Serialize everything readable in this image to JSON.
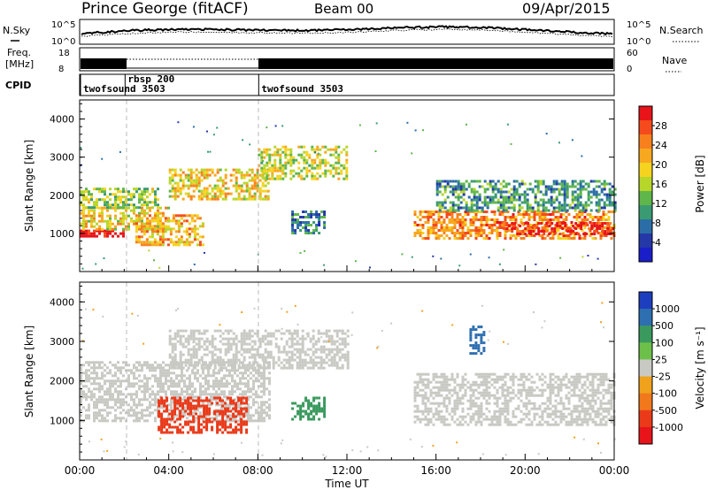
{
  "header": {
    "station": "Prince George (fitACF)",
    "beam": "Beam 00",
    "date": "09/Apr/2015"
  },
  "params": {
    "nsky_label": "N.Sky",
    "nsearch_label": "N.Search",
    "freq_label": "Freq.",
    "freq_unit": "[MHz]",
    "nave_label": "Nave",
    "cpid_label": "CPID",
    "noise_ticks": [
      "10^5",
      "10^0"
    ],
    "freq_ticks": [
      "18",
      "8"
    ],
    "nave_ticks": [
      "60",
      "0"
    ],
    "cpid_entries": [
      {
        "name": "twofsound 3503",
        "start_hour": 0.0
      },
      {
        "name": "rbsp 200",
        "start_hour": 2.0
      },
      {
        "name": "twofsound 3503",
        "start_hour": 8.0
      }
    ]
  },
  "chart_data": [
    {
      "type": "heatmap",
      "quantity": "Power",
      "xlabel": "",
      "ylabel": "Slant Range [km]",
      "xlim": [
        0,
        24
      ],
      "ylim": [
        0,
        4500
      ],
      "yticks": [
        "1000",
        "2000",
        "3000",
        "4000"
      ],
      "colorbar": {
        "label": "Power [dB]",
        "ticks": [
          "28",
          "24",
          "20",
          "16",
          "12",
          "8",
          "4"
        ],
        "colors": [
          "#e8141a",
          "#f54a1c",
          "#f7801c",
          "#f7a81f",
          "#f5d31f",
          "#b7d62a",
          "#5fb64a",
          "#3a9b72",
          "#2b6ea7",
          "#2438a8",
          "#1a1ec8"
        ]
      },
      "regions": [
        {
          "hours": [
            0.0,
            2.0
          ],
          "range_km": [
            900,
            1100
          ],
          "value_db": 28
        },
        {
          "hours": [
            0.0,
            4.0
          ],
          "range_km": [
            1100,
            1700
          ],
          "value_db": 18
        },
        {
          "hours": [
            0.0,
            3.5
          ],
          "range_km": [
            1700,
            2200
          ],
          "value_db": 14
        },
        {
          "hours": [
            2.5,
            5.5
          ],
          "range_km": [
            700,
            1500
          ],
          "value_db": 20
        },
        {
          "hours": [
            4.0,
            8.5
          ],
          "range_km": [
            1900,
            2700
          ],
          "value_db": 18
        },
        {
          "hours": [
            8.0,
            12.0
          ],
          "range_km": [
            2400,
            3300
          ],
          "value_db": 16
        },
        {
          "hours": [
            9.5,
            11.0
          ],
          "range_km": [
            1000,
            1600
          ],
          "value_db": 8
        },
        {
          "hours": [
            15.0,
            24.0
          ],
          "range_km": [
            900,
            1600
          ],
          "value_db": 22
        },
        {
          "hours": [
            19.0,
            24.0
          ],
          "range_km": [
            1000,
            1300
          ],
          "value_db": 28
        },
        {
          "hours": [
            16.0,
            24.0
          ],
          "range_km": [
            1600,
            2400
          ],
          "value_db": 10
        }
      ]
    },
    {
      "type": "heatmap",
      "quantity": "Velocity",
      "xlabel": "Time UT",
      "ylabel": "Slant Range [km]",
      "xlim": [
        0,
        24
      ],
      "ylim": [
        0,
        4500
      ],
      "xticks": [
        "00:00",
        "04:00",
        "08:00",
        "12:00",
        "16:00",
        "20:00",
        "00:00"
      ],
      "yticks": [
        "1000",
        "2000",
        "3000",
        "4000"
      ],
      "colorbar": {
        "label": "Velocity [m s⁻¹]",
        "ticks": [
          "1000",
          "500",
          "100",
          "25",
          "-25",
          "-100",
          "-500",
          "-1000"
        ],
        "colors": [
          "#1d3fbf",
          "#2d6fb0",
          "#3a9a5e",
          "#6cc04a",
          "#c9c9c4",
          "#f0a21c",
          "#f2781c",
          "#ea3a1a",
          "#e8141a"
        ]
      },
      "regions": [
        {
          "hours": [
            0.0,
            8.5
          ],
          "range_km": [
            1000,
            2500
          ],
          "value_ms": 0
        },
        {
          "hours": [
            4.0,
            12.0
          ],
          "range_km": [
            2300,
            3300
          ],
          "value_ms": 0
        },
        {
          "hours": [
            3.5,
            7.5
          ],
          "range_km": [
            700,
            1600
          ],
          "value_ms": -500
        },
        {
          "hours": [
            9.5,
            11.0
          ],
          "range_km": [
            1000,
            1600
          ],
          "value_ms": 500
        },
        {
          "hours": [
            15.0,
            24.0
          ],
          "range_km": [
            900,
            2200
          ],
          "value_ms": 0
        },
        {
          "hours": [
            17.5,
            18.2
          ],
          "range_km": [
            2700,
            3400
          ],
          "value_ms": 800
        }
      ]
    }
  ]
}
